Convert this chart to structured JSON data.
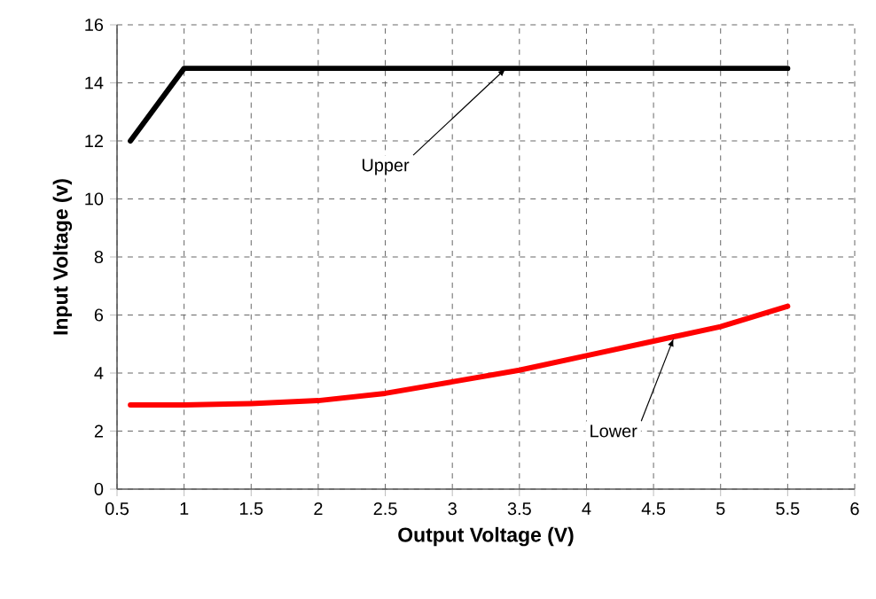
{
  "chart_data": {
    "type": "line",
    "xlabel": "Output Voltage (V)",
    "ylabel": "Input Voltage (v)",
    "xlim": [
      0.5,
      6
    ],
    "xticks": [
      0.5,
      1,
      1.5,
      2,
      2.5,
      3,
      3.5,
      4,
      4.5,
      5,
      5.5,
      6
    ],
    "ylim": [
      0,
      16
    ],
    "yticks": [
      0,
      2,
      4,
      6,
      8,
      10,
      12,
      14,
      16
    ],
    "grid": true,
    "marker": "none",
    "line_style": "solid",
    "series": [
      {
        "color": "#000000",
        "x": [
          0.6,
          1,
          5.5
        ],
        "values": [
          12,
          14.5,
          14.5
        ]
      },
      {
        "color": "#ff0000",
        "x": [
          0.6,
          1,
          1.5,
          2,
          2.5,
          3,
          3.5,
          4,
          4.5,
          5,
          5.5
        ],
        "values": [
          2.9,
          2.9,
          2.95,
          3.05,
          3.3,
          3.7,
          4.1,
          4.6,
          5.1,
          5.6,
          6.3
        ]
      }
    ],
    "annotations": [
      {
        "text": "Upper",
        "x": 3.4,
        "y": 14.5
      },
      {
        "text": "Lower",
        "x": 4.65,
        "y": 5.2
      }
    ]
  }
}
